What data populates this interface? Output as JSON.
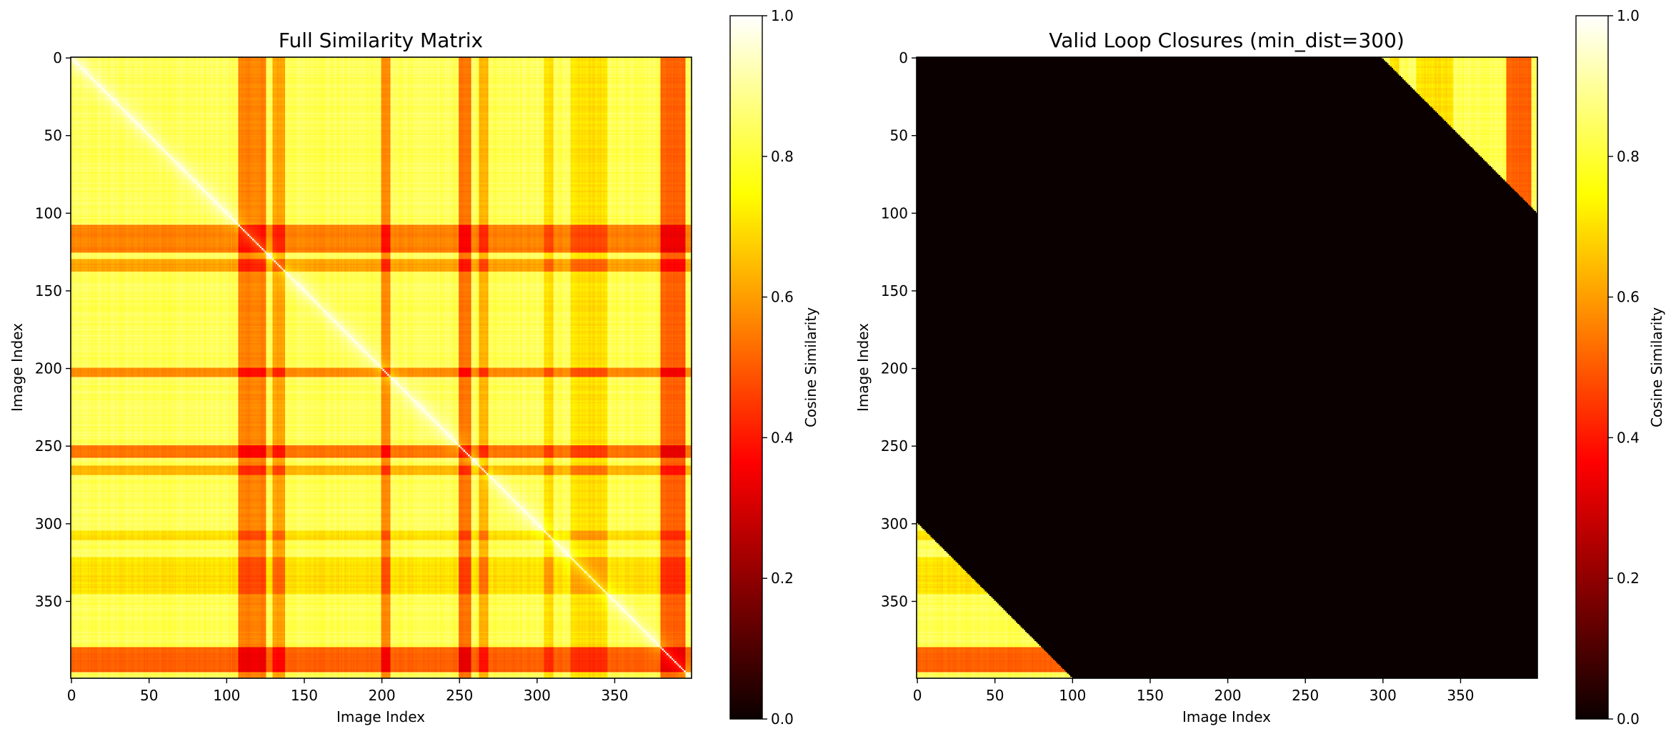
{
  "chart_data": [
    {
      "type": "heatmap",
      "title": "Full Similarity Matrix",
      "xlabel": "Image Index",
      "ylabel": "Image Index",
      "size": 400,
      "xlim": [
        0,
        399
      ],
      "ylim": [
        399,
        0
      ],
      "x_ticks": [
        0,
        50,
        100,
        150,
        200,
        250,
        300,
        350
      ],
      "y_ticks": [
        0,
        50,
        100,
        150,
        200,
        250,
        300,
        350
      ],
      "y_axis_inverted": true,
      "mask": "none",
      "colormap": "hot",
      "colorbar": {
        "label": "Cosine Similarity",
        "range": [
          0.0,
          1.0
        ],
        "ticks": [
          "0.0",
          "0.2",
          "0.4",
          "0.6",
          "0.8",
          "1.0"
        ]
      },
      "diagonal_value": 1.0,
      "base_similarity": 0.85,
      "low_similarity_bands": [
        {
          "index_range": [
            108,
            125
          ],
          "similarity": 0.38
        },
        {
          "index_range": [
            130,
            137
          ],
          "similarity": 0.45
        },
        {
          "index_range": [
            200,
            205
          ],
          "similarity": 0.4
        },
        {
          "index_range": [
            250,
            257
          ],
          "similarity": 0.35
        },
        {
          "index_range": [
            263,
            268
          ],
          "similarity": 0.5
        },
        {
          "index_range": [
            305,
            310
          ],
          "similarity": 0.6
        },
        {
          "index_range": [
            322,
            345
          ],
          "similarity": 0.6
        },
        {
          "index_range": [
            380,
            395
          ],
          "similarity": 0.32
        }
      ]
    },
    {
      "type": "heatmap",
      "title": "Valid Loop Closures (min_dist=300)",
      "xlabel": "Image Index",
      "ylabel": "Image Index",
      "size": 400,
      "xlim": [
        0,
        399
      ],
      "ylim": [
        399,
        0
      ],
      "x_ticks": [
        0,
        50,
        100,
        150,
        200,
        250,
        300,
        350
      ],
      "y_ticks": [
        0,
        50,
        100,
        150,
        200,
        250,
        300,
        350
      ],
      "y_axis_inverted": true,
      "mask": "|i - j| >= 300 shown, others 0",
      "min_dist": 300,
      "colormap": "hot",
      "colorbar": {
        "label": "Cosine Similarity",
        "range": [
          0.0,
          1.0
        ],
        "ticks": [
          "0.0",
          "0.2",
          "0.4",
          "0.6",
          "0.8",
          "1.0"
        ]
      }
    }
  ],
  "colors": {
    "background": "#ffffff",
    "axis": "#000000"
  }
}
